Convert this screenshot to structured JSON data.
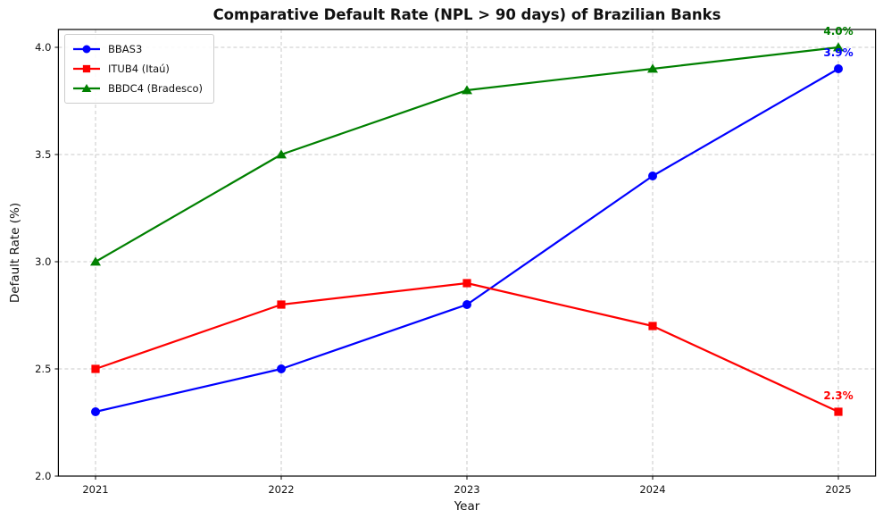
{
  "chart_data": {
    "type": "line",
    "title": "Comparative Default Rate (NPL > 90 days) of Brazilian Banks",
    "xlabel": "Year",
    "ylabel": "Default Rate (%)",
    "x": [
      2021,
      2022,
      2023,
      2024,
      2025
    ],
    "x_tick_labels": [
      "2021",
      "2022",
      "2023",
      "2024",
      "2025"
    ],
    "y_ticks": [
      2.0,
      2.5,
      3.0,
      3.5,
      4.0
    ],
    "y_tick_labels": [
      "2.0",
      "2.5",
      "3.0",
      "3.5",
      "4.0"
    ],
    "xlim": [
      2020.8,
      2025.2
    ],
    "ylim": [
      2.0,
      4.0833
    ],
    "grid": true,
    "grid_style": "dashed",
    "legend_position": "upper-left",
    "series": [
      {
        "name": "BBAS3",
        "color": "#0000ff",
        "marker": "circle",
        "values": [
          2.3,
          2.5,
          2.8,
          3.4,
          3.9
        ]
      },
      {
        "name": "ITUB4 (Itaú)",
        "color": "#ff0000",
        "marker": "square",
        "values": [
          2.5,
          2.8,
          2.9,
          2.7,
          2.3
        ]
      },
      {
        "name": "BBDC4 (Bradesco)",
        "color": "#008000",
        "marker": "triangle",
        "values": [
          3.0,
          3.5,
          3.8,
          3.9,
          4.0
        ]
      }
    ],
    "annotations": [
      {
        "text": "3.9%",
        "x": 2025,
        "y": 3.9,
        "color": "#0000ff",
        "series": "BBAS3"
      },
      {
        "text": "2.3%",
        "x": 2025,
        "y": 2.3,
        "color": "#ff0000",
        "series": "ITUB4 (Itaú)"
      },
      {
        "text": "4.0%",
        "x": 2025,
        "y": 4.0,
        "color": "#008000",
        "series": "BBDC4 (Bradesco)"
      }
    ]
  }
}
